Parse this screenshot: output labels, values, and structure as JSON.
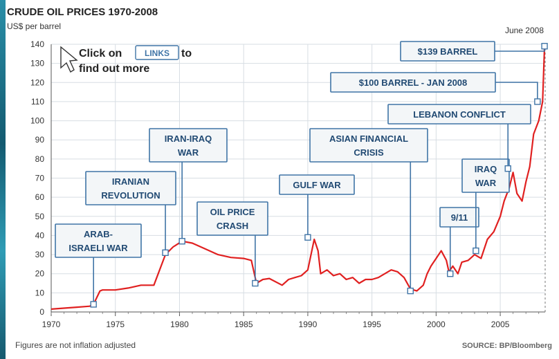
{
  "chart_data": {
    "type": "line",
    "title": "CRUDE OIL PRICES 1970-2008",
    "ylabel": "US$ per barrel",
    "xlim": [
      1970,
      2008.5
    ],
    "ylim": [
      0,
      140
    ],
    "x_ticks": [
      1970,
      1975,
      1980,
      1985,
      1990,
      1995,
      2000,
      2005
    ],
    "y_ticks": [
      0,
      10,
      20,
      30,
      40,
      50,
      60,
      70,
      80,
      90,
      100,
      110,
      120,
      130,
      140
    ],
    "grid": true,
    "line_color": "#e02020",
    "top_right_label": "June 2008",
    "footnote": "Figures are not inflation adjusted",
    "source": "SOURCE: BP/Bloomberg",
    "hint": {
      "line1_pre": "Click on",
      "link": "LINKS",
      "line1_post": "to",
      "line2": "find out more"
    },
    "series": [
      {
        "x": [
          1970,
          1971,
          1972,
          1973,
          1973.3,
          1973.8,
          1974,
          1975,
          1976,
          1977,
          1978,
          1978.9,
          1979.5,
          1980.2,
          1981,
          1982,
          1983,
          1984,
          1985,
          1985.6,
          1986,
          1986.5,
          1987,
          1988,
          1988.5,
          1989,
          1989.5,
          1990,
          1990.5,
          1990.8,
          1991,
          1991.5,
          1992,
          1992.5,
          1993,
          1993.5,
          1994,
          1994.5,
          1995,
          1995.5,
          1996,
          1996.5,
          1997,
          1997.5,
          1998,
          1998.5,
          1999,
          1999.3,
          1999.6,
          2000,
          2000.4,
          2000.8,
          2001,
          2001.3,
          2001.7,
          2002,
          2002.5,
          2003,
          2003.5,
          2004,
          2004.5,
          2005,
          2005.3,
          2005.7,
          2006,
          2006.3,
          2006.7,
          2007,
          2007.3,
          2007.6,
          2008,
          2008.3,
          2008.45
        ],
        "values": [
          1.5,
          2,
          2.5,
          3,
          4,
          11,
          11.5,
          11.5,
          12.5,
          14,
          14,
          30,
          34,
          37,
          36,
          33,
          30,
          28.5,
          28,
          27,
          15,
          17,
          17.5,
          14,
          17,
          18,
          19,
          22,
          38,
          32,
          20,
          22,
          19,
          20,
          17,
          18,
          15,
          17,
          17,
          18,
          20,
          22,
          21,
          18,
          12,
          11,
          14,
          20,
          24,
          28,
          32,
          27,
          21,
          24,
          20,
          26,
          27,
          30,
          28,
          38,
          42,
          50,
          58,
          65,
          73,
          62,
          58,
          68,
          76,
          93,
          100,
          110,
          139
        ]
      }
    ],
    "events": [
      {
        "label_lines": [
          "ARAB-",
          "ISRAELI WAR"
        ],
        "x": 1973.3,
        "y": 4
      },
      {
        "label_lines": [
          "IRANIAN",
          "REVOLUTION"
        ],
        "x": 1978.9,
        "y": 31
      },
      {
        "label_lines": [
          "IRAN-IRAQ",
          "WAR"
        ],
        "x": 1980.2,
        "y": 37
      },
      {
        "label_lines": [
          "OIL PRICE",
          "CRASH"
        ],
        "x": 1985.9,
        "y": 15
      },
      {
        "label_lines": [
          "GULF WAR"
        ],
        "x": 1990,
        "y": 39
      },
      {
        "label_lines": [
          "ASIAN FINANCIAL",
          "CRISIS"
        ],
        "x": 1998,
        "y": 11
      },
      {
        "label_lines": [
          "9/11"
        ],
        "x": 2001.1,
        "y": 20
      },
      {
        "label_lines": [
          "IRAQ",
          "WAR"
        ],
        "x": 2003.1,
        "y": 32
      },
      {
        "label_lines": [
          "LEBANON CONFLICT"
        ],
        "x": 2005.6,
        "y": 75
      },
      {
        "label_lines": [
          "$100 BARREL - JAN 2008"
        ],
        "x": 2007.9,
        "y": 110
      },
      {
        "label_lines": [
          "$139 BARREL"
        ],
        "x": 2008.45,
        "y": 139
      }
    ]
  }
}
